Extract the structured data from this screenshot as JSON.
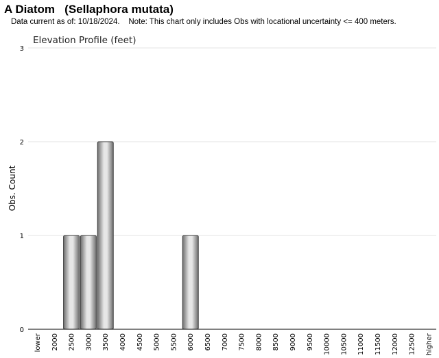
{
  "header": {
    "title": "A Diatom   (Sellaphora mutata)",
    "subtitle": "Data current as of: 10/18/2024.    Note: This chart only includes Obs with locational uncertainty <= 400 meters."
  },
  "chart_data": {
    "type": "bar",
    "title": "Elevation Profile (feet)",
    "xlabel": "",
    "ylabel": "Obs. Count",
    "ylim": [
      0,
      3
    ],
    "yticks": [
      0,
      1,
      2,
      3
    ],
    "grid": true,
    "categories": [
      "lower",
      "2000",
      "2500",
      "3000",
      "3500",
      "4000",
      "4500",
      "5000",
      "5500",
      "6000",
      "6500",
      "7000",
      "7500",
      "8000",
      "8500",
      "9000",
      "9500",
      "10000",
      "10500",
      "11000",
      "11500",
      "12000",
      "12500",
      "higher"
    ],
    "values": [
      0,
      0,
      1,
      1,
      2,
      0,
      0,
      0,
      0,
      1,
      0,
      0,
      0,
      0,
      0,
      0,
      0,
      0,
      0,
      0,
      0,
      0,
      0,
      0
    ],
    "bar_color": "#a8a8a8"
  }
}
